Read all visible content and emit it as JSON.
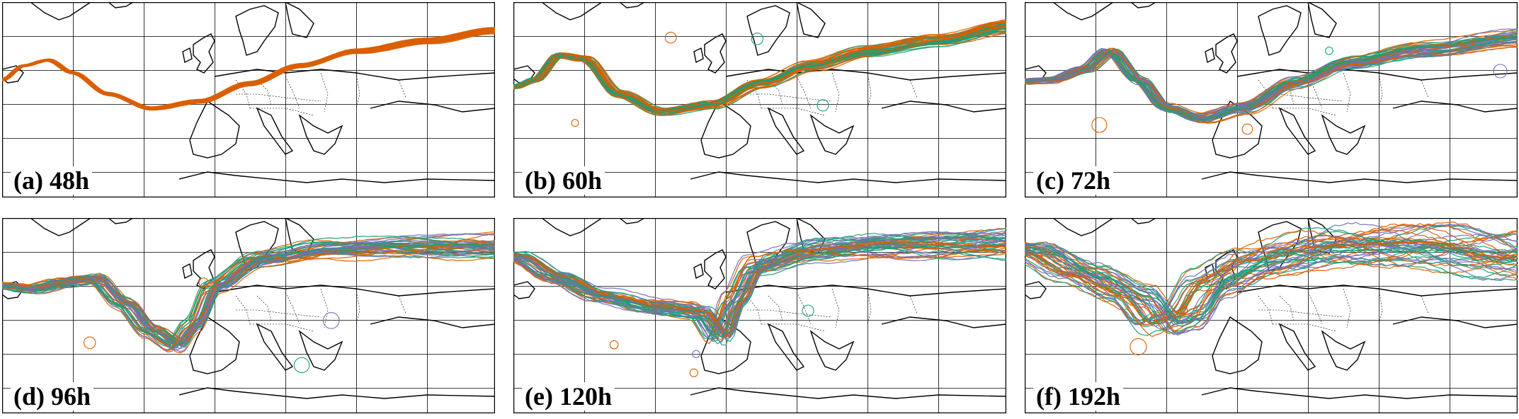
{
  "colors": {
    "orange": "#d95f02",
    "teal": "#1b9e77",
    "purple": "#7570b3",
    "frame": "#000000",
    "grid": "#000000",
    "coast": "#000000"
  },
  "panels": [
    {
      "label": "(a) 48h",
      "spread": 0.15,
      "palette": [
        "orange"
      ]
    },
    {
      "label": "(b) 60h",
      "spread": 0.35,
      "palette": [
        "orange",
        "teal"
      ]
    },
    {
      "label": "(c) 72h",
      "spread": 0.5,
      "palette": [
        "orange",
        "teal",
        "purple"
      ]
    },
    {
      "label": "(d) 96h",
      "spread": 0.7,
      "palette": [
        "orange",
        "teal",
        "purple"
      ]
    },
    {
      "label": "(e) 120h",
      "spread": 0.9,
      "palette": [
        "orange",
        "teal",
        "purple"
      ]
    },
    {
      "label": "(f) 192h",
      "spread": 1.6,
      "palette": [
        "orange",
        "teal",
        "purple"
      ]
    }
  ]
}
